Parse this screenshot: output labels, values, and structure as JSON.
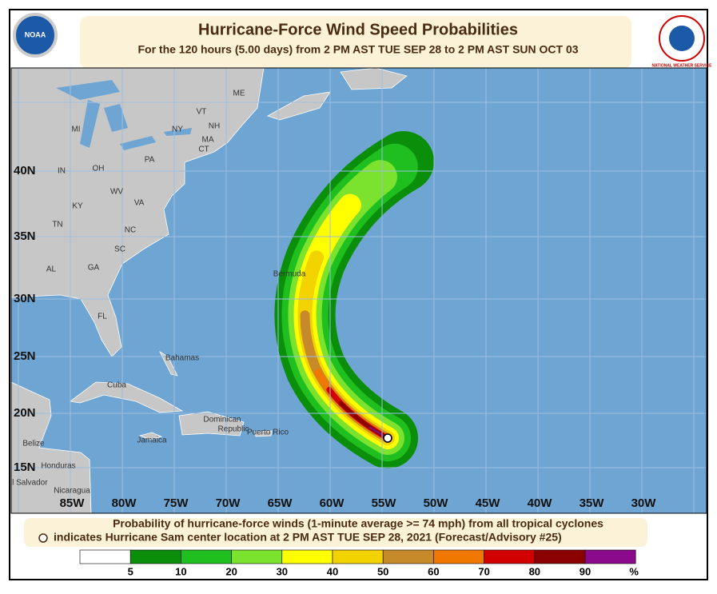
{
  "header": {
    "title": "Hurricane-Force Wind Speed Probabilities",
    "subtitle": "For the 120 hours (5.00 days) from 2 PM AST TUE SEP 28 to 2 PM AST SUN OCT 03"
  },
  "logos": {
    "left": "NOAA",
    "right": "NATIONAL WEATHER SERVICE"
  },
  "map": {
    "longitudes": [
      "85W",
      "80W",
      "75W",
      "70W",
      "65W",
      "60W",
      "55W",
      "50W",
      "45W",
      "40W",
      "35W",
      "30W"
    ],
    "latitudes": [
      "40N",
      "35N",
      "30N",
      "25N",
      "20N",
      "15N"
    ],
    "places": [
      "ME",
      "MI",
      "NY",
      "VT",
      "NH",
      "MA",
      "CT",
      "PA",
      "OH",
      "IN",
      "WV",
      "VA",
      "KY",
      "NC",
      "TN",
      "SC",
      "AL",
      "GA",
      "FL",
      "Bermuda",
      "Bahamas",
      "Cuba",
      "Jamaica",
      "Dominican",
      "Republic",
      "Puerto Rico",
      "Belize",
      "Honduras",
      "El Salvador",
      "Nicaragua"
    ]
  },
  "footer": {
    "line1": "Probability of hurricane-force winds (1-minute average >= 74 mph) from all tropical cyclones",
    "line2": "indicates Hurricane Sam center location at 2 PM AST TUE SEP 28, 2021 (Forecast/Advisory #25)"
  },
  "legend": {
    "colors": [
      "#ffffff",
      "#0b8f0b",
      "#1fbf1f",
      "#7be22e",
      "#ffff00",
      "#f2d300",
      "#c68a2a",
      "#f07800",
      "#d20000",
      "#8b0000",
      "#8b0a8b"
    ],
    "labels": [
      5,
      10,
      20,
      30,
      40,
      50,
      60,
      70,
      80,
      90
    ],
    "unit": "%"
  }
}
